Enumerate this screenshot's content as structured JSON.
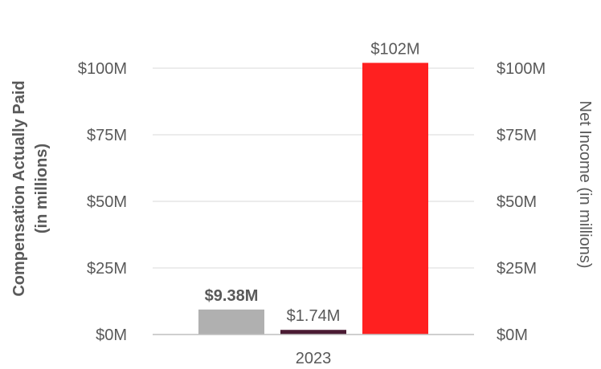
{
  "chart_data": {
    "type": "bar",
    "categories": [
      "2023"
    ],
    "series": [
      {
        "values": [
          9.38
        ],
        "color": "#b0b0b0",
        "axis": "left",
        "label": "$9.38M",
        "label_bold": true
      },
      {
        "values": [
          1.74
        ],
        "color": "#4a1b33",
        "axis": "left",
        "label": "$1.74M",
        "label_bold": false
      },
      {
        "values": [
          102
        ],
        "color": "#ff2020",
        "axis": "right",
        "label": "$102M",
        "label_bold": false
      }
    ],
    "ylabel": "Compensation Actually Paid",
    "ylabel_sub": "(in millions)",
    "y2label": "Net Income (in millions)",
    "ylim": [
      0,
      100
    ],
    "y2lim": [
      0,
      100
    ],
    "yticks": [
      0,
      25,
      50,
      75,
      100
    ],
    "ytick_labels": [
      "$0M",
      "$25M",
      "$50M",
      "$75M",
      "$100M"
    ],
    "y2ticks": [
      0,
      25,
      50,
      75,
      100
    ],
    "y2tick_labels": [
      "$0M",
      "$25M",
      "$50M",
      "$75M",
      "$100M"
    ],
    "grid": true,
    "colors": {
      "grid": "#e6e6e6",
      "axis": "#bfbfbf",
      "text": "#595959"
    }
  }
}
